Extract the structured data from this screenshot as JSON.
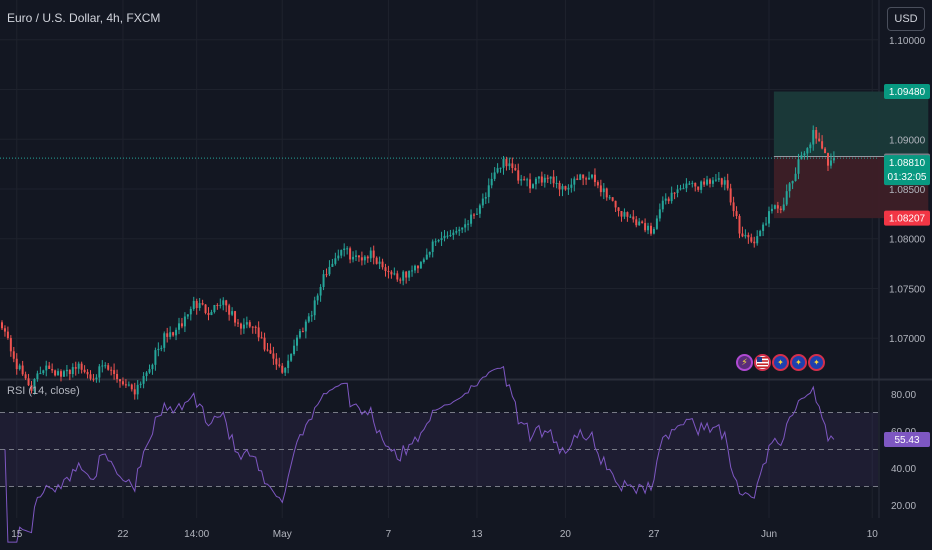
{
  "header": {
    "title": "Euro / U.S. Dollar, 4h, FXCM",
    "currency_label": "USD"
  },
  "colors": {
    "background": "#131722",
    "bull": "#26a69a",
    "bear": "#ef5350",
    "rsi_line": "#7e57c2",
    "grid": "#1e222d",
    "take_profit_zone": "#1a3a3a",
    "stop_loss_zone": "#3d1f27"
  },
  "icons": [
    "lightning-icon",
    "us-flag-icon",
    "eu-flag-icon",
    "eu-flag-icon",
    "eu-flag-icon"
  ],
  "chart_data": [
    {
      "type": "candlestick",
      "title": "Euro / U.S. Dollar, 4h, FXCM",
      "price_axis_ticks": [
        "1.10000",
        "1.09500",
        "1.09000",
        "1.08500",
        "1.08000",
        "1.07500",
        "1.07000"
      ],
      "price_axis_values": [
        1.1,
        1.095,
        1.09,
        1.085,
        1.08,
        1.075,
        1.07
      ],
      "ylim": [
        1.066,
        1.104
      ],
      "x_tick_labels": [
        "15",
        "22",
        "14:00",
        "May",
        "7",
        "13",
        "20",
        "27",
        "Jun",
        "10"
      ],
      "x_tick_candle_index": [
        5,
        41,
        66,
        95,
        131,
        161,
        191,
        221,
        260,
        295
      ],
      "candle_count": 320,
      "price_labels": {
        "take_profit": "1.09480",
        "entry": "1.08827",
        "last_price": "1.08810",
        "countdown": "01:32:05",
        "stop_loss": "1.08207"
      },
      "price_levels": {
        "take_profit": 1.0948,
        "entry": 1.08827,
        "last_price": 1.0881,
        "stop_loss": 1.08207
      },
      "position": {
        "start_candle_index": 262,
        "end_candle_index": 314
      },
      "closes_anchor": [
        [
          0,
          1.0715
        ],
        [
          5,
          1.0672
        ],
        [
          10,
          1.0651
        ],
        [
          15,
          1.0675
        ],
        [
          20,
          1.0661
        ],
        [
          25,
          1.0673
        ],
        [
          30,
          1.0662
        ],
        [
          35,
          1.067
        ],
        [
          40,
          1.0658
        ],
        [
          45,
          1.0648
        ],
        [
          50,
          1.0672
        ],
        [
          55,
          1.07
        ],
        [
          60,
          1.071
        ],
        [
          65,
          1.0735
        ],
        [
          70,
          1.0728
        ],
        [
          75,
          1.0738
        ],
        [
          80,
          1.0712
        ],
        [
          85,
          1.0712
        ],
        [
          90,
          1.0685
        ],
        [
          95,
          1.0665
        ],
        [
          100,
          1.07
        ],
        [
          105,
          1.0728
        ],
        [
          110,
          1.0768
        ],
        [
          115,
          1.079
        ],
        [
          120,
          1.078
        ],
        [
          125,
          1.0785
        ],
        [
          130,
          1.077
        ],
        [
          135,
          1.076
        ],
        [
          140,
          1.077
        ],
        [
          145,
          1.079
        ],
        [
          150,
          1.0803
        ],
        [
          155,
          1.081
        ],
        [
          160,
          1.0825
        ],
        [
          165,
          1.085
        ],
        [
          170,
          1.088
        ],
        [
          175,
          1.086
        ],
        [
          180,
          1.0853
        ],
        [
          185,
          1.0865
        ],
        [
          190,
          1.085
        ],
        [
          195,
          1.086
        ],
        [
          200,
          1.086
        ],
        [
          205,
          1.0845
        ],
        [
          210,
          1.0825
        ],
        [
          215,
          1.0818
        ],
        [
          220,
          1.0808
        ],
        [
          225,
          1.084
        ],
        [
          230,
          1.0852
        ],
        [
          235,
          1.0852
        ],
        [
          240,
          1.086
        ],
        [
          245,
          1.0855
        ],
        [
          250,
          1.081
        ],
        [
          255,
          1.0795
        ],
        [
          260,
          1.0825
        ],
        [
          265,
          1.0835
        ],
        [
          270,
          1.0875
        ],
        [
          275,
          1.0905
        ],
        [
          280,
          1.0877
        ],
        [
          282,
          1.0881
        ]
      ]
    },
    {
      "type": "line",
      "title": "RSI (14, close)",
      "series": [
        {
          "name": "RSI (14, close)",
          "last_value": 55.43
        }
      ],
      "y_tick_labels": [
        "80.00",
        "60.00",
        "40.00",
        "20.00"
      ],
      "y_tick_values": [
        80,
        60,
        40,
        20
      ],
      "ylim": [
        13,
        87
      ],
      "band_levels": {
        "upper": 70,
        "middle": 50,
        "lower": 30
      },
      "last_value_label": "55.43"
    }
  ]
}
